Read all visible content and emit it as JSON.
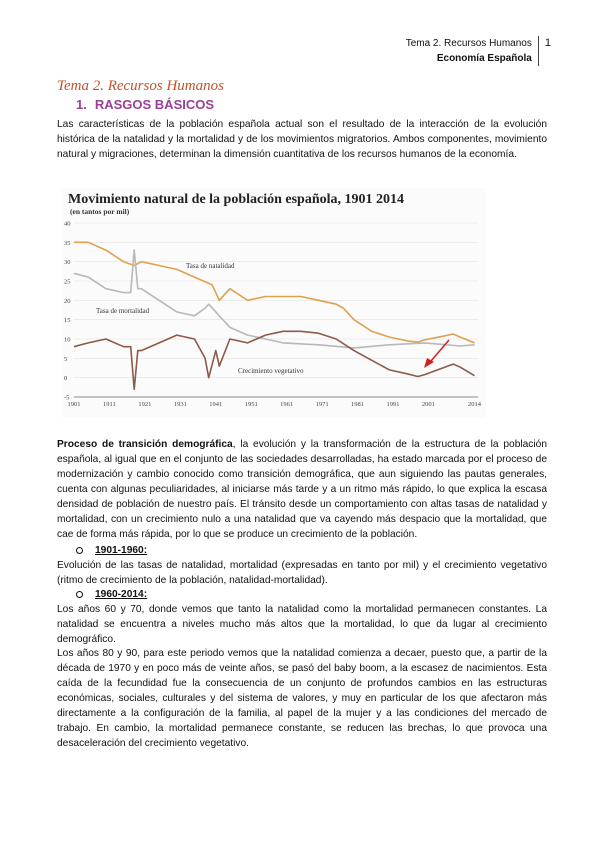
{
  "header": {
    "line1": "Tema 2. Recursos Humanos",
    "line2": "Economía Española",
    "page": "1"
  },
  "title": "Tema 2. Recursos Humanos",
  "section": {
    "number": "1.",
    "label": "RASGOS BÁSICOS"
  },
  "intro": "Las características de la población española actual son el resultado de la interacción de la evolución histórica de la natalidad y la mortalidad y de los movimientos migratorios. Ambos componentes, movimiento natural y migraciones, determinan la dimensión cuantitativa de los recursos humanos de la economía.",
  "chart_data": {
    "type": "line",
    "title": "Movimiento natural de la población española, 1901 2014",
    "subtitle": "(en tantos por mil)",
    "x_ticks": [
      "1901",
      "1911",
      "1921",
      "1931",
      "1941",
      "1951",
      "1961",
      "1971",
      "1981",
      "1991",
      "2001",
      "2014"
    ],
    "y_ticks": [
      "-5",
      "0",
      "5",
      "10",
      "15",
      "20",
      "25",
      "30",
      "35",
      "40"
    ],
    "ylim": [
      -5,
      40
    ],
    "xlim": [
      1901,
      2015
    ],
    "series": [
      {
        "name": "Tasa de natalidad",
        "color": "#e0a050",
        "x": [
          1901,
          1905,
          1910,
          1915,
          1918,
          1920,
          1925,
          1930,
          1935,
          1940,
          1942,
          1945,
          1950,
          1955,
          1960,
          1965,
          1970,
          1975,
          1977,
          1980,
          1985,
          1990,
          1995,
          1998,
          2000,
          2005,
          2008,
          2010,
          2014
        ],
        "values": [
          35,
          35,
          33,
          30,
          29,
          30,
          29,
          28,
          26,
          24,
          20,
          23,
          20,
          21,
          21,
          21,
          20,
          19,
          18,
          15,
          12,
          10.5,
          9.5,
          9.2,
          9.8,
          10.7,
          11.3,
          10.5,
          9
        ]
      },
      {
        "name": "Tasa de mortalidad",
        "color": "#b8b8b8",
        "x": [
          1901,
          1905,
          1910,
          1915,
          1917,
          1918,
          1919,
          1920,
          1925,
          1930,
          1935,
          1938,
          1939,
          1941,
          1945,
          1950,
          1955,
          1960,
          1970,
          1980,
          1990,
          2000,
          2010,
          2014
        ],
        "values": [
          27,
          26,
          23,
          22,
          22,
          33,
          23,
          23,
          20,
          17,
          16,
          18,
          19,
          17,
          13,
          11,
          10,
          9,
          8.5,
          7.7,
          8.5,
          9,
          8.2,
          8.5
        ]
      },
      {
        "name": "Crecimiento vegetativo",
        "color": "#8c5a48",
        "x": [
          1901,
          1905,
          1910,
          1915,
          1917,
          1918,
          1919,
          1920,
          1925,
          1930,
          1935,
          1938,
          1939,
          1941,
          1942,
          1945,
          1950,
          1955,
          1960,
          1965,
          1970,
          1975,
          1980,
          1985,
          1990,
          1995,
          1998,
          2000,
          2005,
          2008,
          2010,
          2014
        ],
        "values": [
          8,
          9,
          10,
          8,
          8,
          -3,
          7,
          7,
          9,
          11,
          10,
          5,
          0,
          7,
          3,
          10,
          9,
          11,
          12,
          12,
          11.5,
          10,
          7,
          4.5,
          2,
          1,
          0.3,
          0.8,
          2.5,
          3.5,
          2.7,
          0.5
        ]
      }
    ]
  },
  "paragraphs": {
    "p1_bold": "Proceso de transición demográfica",
    "p1_rest": ", la evolución y la transformación de la estructura de la población española, al igual que en el conjunto de las sociedades desarrolladas, ha estado marcada por el proceso de modernización y cambio conocido como transición demográfica, que aun siguiendo las pautas generales, cuenta con algunas peculiaridades, al iniciarse más tarde y a un ritmo más rápido, lo que explica la escasa densidad de población de nuestro país. El tránsito desde un comportamiento con altas tasas de natalidad y mortalidad, con un crecimiento nulo a una natalidad que va cayendo más despacio que la mortalidad, que cae de forma más rápida, por lo que se produce un crecimiento de la población.",
    "bullet1": "1901-1960:",
    "p2": "Evolución de las tasas de natalidad, mortalidad (expresadas en tanto por mil) y el crecimiento vegetativo (ritmo de crecimiento de la población, natalidad-mortalidad).",
    "bullet2": "1960-2014:",
    "p3": "Los años 60 y 70, donde vemos que tanto la natalidad como la mortalidad permanecen constantes. La natalidad se encuentra a niveles mucho más altos que la mortalidad, lo que da lugar al crecimiento demográfico.",
    "p4": "Los años 80 y 90, para este periodo vemos que la natalidad comienza a decaer, puesto que, a partir de la década de 1970 y en poco más de veinte años, se pasó del baby boom, a la escasez de nacimientos. Esta caída de la fecundidad fue la consecuencia de un conjunto de profundos cambios en las estructuras económicas, sociales, culturales y del sistema de valores, y muy en particular de los que afectaron más directamente a la configuración de la familia, al papel de la mujer y a las condiciones del mercado de trabajo. En cambio, la mortalidad permanece constante, se reducen las brechas, lo que provoca una desaceleración del crecimiento vegetativo."
  }
}
